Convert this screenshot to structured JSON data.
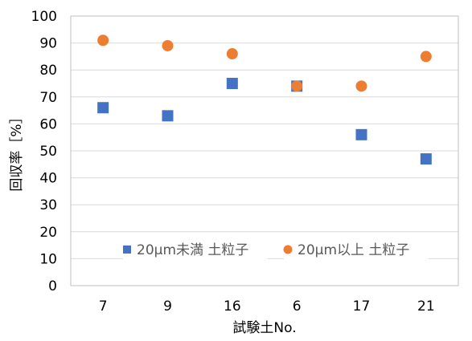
{
  "chart_data": {
    "type": "scatter",
    "title": "",
    "xlabel": "試験土No.",
    "ylabel": "回収率［%］",
    "categories": [
      "7",
      "9",
      "16",
      "6",
      "17",
      "21"
    ],
    "ylim": [
      0,
      100
    ],
    "yticks": [
      0,
      10,
      20,
      30,
      40,
      50,
      60,
      70,
      80,
      90,
      100
    ],
    "grid": true,
    "legend_position": "bottom-center",
    "series": [
      {
        "name": "20μm未満 土粒子",
        "marker": "square",
        "color": "#4472C4",
        "values": [
          66,
          63,
          75,
          74,
          56,
          47
        ]
      },
      {
        "name": "20μm以上 土粒子",
        "marker": "circle",
        "color": "#ED7D31",
        "values": [
          91,
          89,
          86,
          74,
          74,
          85
        ]
      }
    ]
  }
}
